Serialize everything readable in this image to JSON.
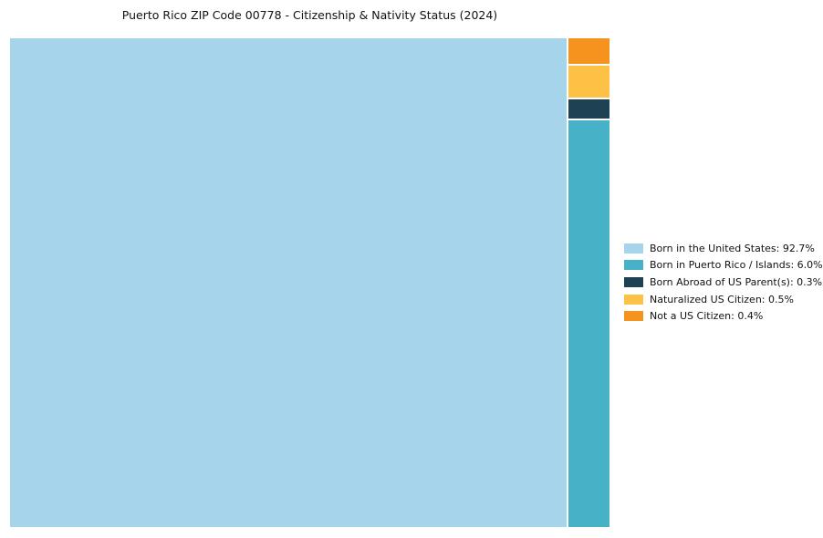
{
  "chart_data": {
    "type": "treemap",
    "title": "Puerto Rico ZIP Code 00778 - Citizenship & Nativity Status (2024)",
    "legend_position": "right",
    "units": "percent",
    "items": [
      {
        "id": "born-in-us",
        "label": "Born in the United States",
        "value": 92.7,
        "display": "Born in the United States: 92.7%",
        "color": "#A6D4EA"
      },
      {
        "id": "born-in-pr-islands",
        "label": "Born in Puerto Rico / Islands",
        "value": 6.0,
        "display": "Born in Puerto Rico / Islands: 6.0%",
        "color": "#47B1C8"
      },
      {
        "id": "born-abroad-us-parents",
        "label": "Born Abroad of US Parent(s)",
        "value": 0.3,
        "display": "Born Abroad of US Parent(s): 0.3%",
        "color": "#1F4154"
      },
      {
        "id": "naturalized-us-citizen",
        "label": "Naturalized US Citizen",
        "value": 0.5,
        "display": "Naturalized US Citizen: 0.5%",
        "color": "#FDC245"
      },
      {
        "id": "not-us-citizen",
        "label": "Not a US Citizen",
        "value": 0.4,
        "display": "Not a US Citizen: 0.4%",
        "color": "#F6921E"
      }
    ]
  }
}
